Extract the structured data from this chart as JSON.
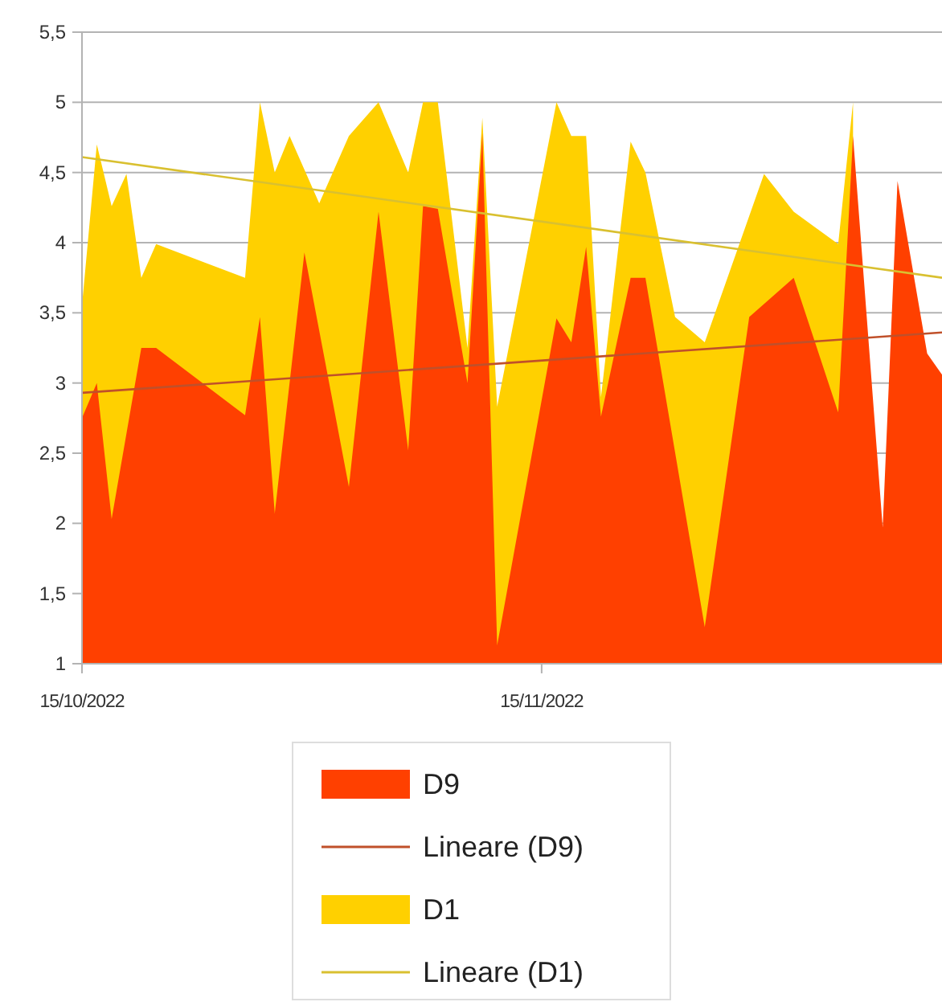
{
  "chart_data": {
    "type": "area",
    "xlim": [
      "2022-10-15",
      "2022-12-12"
    ],
    "xticks": [
      {
        "value": "2022-10-15",
        "label": "15/10/2022"
      },
      {
        "value": "2022-11-15",
        "label": "15/11/2022"
      }
    ],
    "ylim": [
      1,
      5.5
    ],
    "yticks": [
      1,
      {
        "value": 1.5,
        "label": "1,5"
      },
      2,
      {
        "value": 2.5,
        "label": "2,5"
      },
      3,
      {
        "value": 3.5,
        "label": "3,5"
      },
      4,
      {
        "value": 4.5,
        "label": "4,5"
      },
      5,
      {
        "value": 5.5,
        "label": "5,5"
      }
    ],
    "grid": "y",
    "legend": "bottom",
    "series": [
      {
        "name": "D9",
        "color": "#ff4000",
        "x": [
          "2022-10-15",
          "2022-10-16",
          "2022-10-17",
          "2022-10-19",
          "2022-10-20",
          "2022-10-26",
          "2022-10-27",
          "2022-10-28",
          "2022-10-30",
          "2022-11-02",
          "2022-11-04",
          "2022-11-06",
          "2022-11-07",
          "2022-11-08",
          "2022-11-10",
          "2022-11-11",
          "2022-11-12",
          "2022-11-16",
          "2022-11-17",
          "2022-11-18",
          "2022-11-19",
          "2022-11-21",
          "2022-11-22",
          "2022-11-26",
          "2022-11-29",
          "2022-12-02",
          "2022-12-05",
          "2022-12-06",
          "2022-12-08",
          "2022-12-09",
          "2022-12-11",
          "2022-12-12"
        ],
        "values": [
          2.75,
          3.0,
          2.03,
          3.25,
          3.25,
          2.77,
          3.47,
          2.07,
          3.93,
          2.26,
          4.22,
          2.52,
          4.26,
          4.24,
          3.0,
          4.78,
          1.13,
          3.46,
          3.29,
          3.97,
          2.76,
          3.75,
          3.75,
          1.26,
          3.47,
          3.75,
          2.79,
          4.76,
          1.97,
          4.44,
          3.21,
          3.06
        ]
      },
      {
        "name": "Lineare (D9)",
        "type": "line",
        "color": "#c0502a",
        "x": [
          "2022-10-15",
          "2022-12-12"
        ],
        "values": [
          2.93,
          3.36
        ]
      },
      {
        "name": "D1",
        "color": "#ffd000",
        "x": [
          "2022-10-15",
          "2022-10-16",
          "2022-10-17",
          "2022-10-18",
          "2022-10-19",
          "2022-10-20",
          "2022-10-26",
          "2022-10-27",
          "2022-10-28",
          "2022-10-29",
          "2022-10-31",
          "2022-11-02",
          "2022-11-04",
          "2022-11-06",
          "2022-11-07",
          "2022-11-08",
          "2022-11-10",
          "2022-11-11",
          "2022-11-12",
          "2022-11-16",
          "2022-11-17",
          "2022-11-18",
          "2022-11-19",
          "2022-11-21",
          "2022-11-22",
          "2022-11-24",
          "2022-11-26",
          "2022-11-30",
          "2022-12-02",
          "2022-12-05",
          "2022-12-06"
        ],
        "values": [
          3.55,
          4.7,
          4.26,
          4.49,
          3.75,
          3.99,
          3.75,
          5.0,
          4.5,
          4.76,
          4.28,
          4.76,
          5.0,
          4.5,
          5.0,
          5.0,
          3.25,
          4.89,
          2.83,
          5.0,
          4.76,
          4.76,
          2.9,
          4.72,
          4.5,
          3.47,
          3.29,
          4.49,
          4.22,
          3.99,
          5.0
        ]
      },
      {
        "name": "Lineare (D1)",
        "type": "line",
        "color": "#d9c030",
        "x": [
          "2022-10-15",
          "2022-12-12"
        ],
        "values": [
          4.61,
          3.75
        ]
      }
    ]
  }
}
